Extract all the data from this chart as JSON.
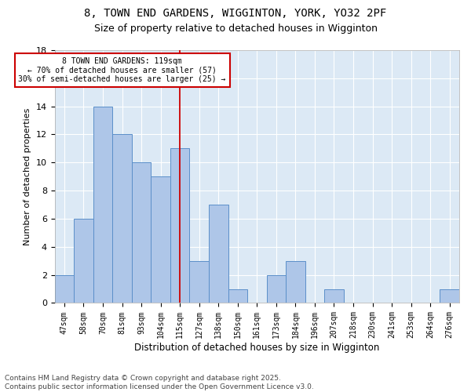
{
  "title1": "8, TOWN END GARDENS, WIGGINTON, YORK, YO32 2PF",
  "title2": "Size of property relative to detached houses in Wigginton",
  "xlabel": "Distribution of detached houses by size in Wigginton",
  "ylabel": "Number of detached properties",
  "categories": [
    "47sqm",
    "58sqm",
    "70sqm",
    "81sqm",
    "93sqm",
    "104sqm",
    "115sqm",
    "127sqm",
    "138sqm",
    "150sqm",
    "161sqm",
    "173sqm",
    "184sqm",
    "196sqm",
    "207sqm",
    "218sqm",
    "230sqm",
    "241sqm",
    "253sqm",
    "264sqm",
    "276sqm"
  ],
  "values": [
    2,
    6,
    14,
    12,
    10,
    9,
    11,
    3,
    7,
    1,
    0,
    2,
    3,
    0,
    1,
    0,
    0,
    0,
    0,
    0,
    1
  ],
  "bar_color": "#aec6e8",
  "bar_edge_color": "#5b8fc9",
  "vline_index": 6,
  "vline_color": "#cc0000",
  "annotation_line1": "8 TOWN END GARDENS: 119sqm",
  "annotation_line2": "← 70% of detached houses are smaller (57)",
  "annotation_line3": "30% of semi-detached houses are larger (25) →",
  "annotation_box_color": "#cc0000",
  "annotation_bg": "#ffffff",
  "ylim": [
    0,
    18
  ],
  "yticks": [
    0,
    2,
    4,
    6,
    8,
    10,
    12,
    14,
    16,
    18
  ],
  "background_color": "#dce9f5",
  "grid_color": "#ffffff",
  "footer_text": "Contains HM Land Registry data © Crown copyright and database right 2025.\nContains public sector information licensed under the Open Government Licence v3.0.",
  "title_fontsize": 10,
  "subtitle_fontsize": 9,
  "annotation_fontsize": 7,
  "footer_fontsize": 6.5,
  "ylabel_fontsize": 8,
  "xlabel_fontsize": 8.5
}
